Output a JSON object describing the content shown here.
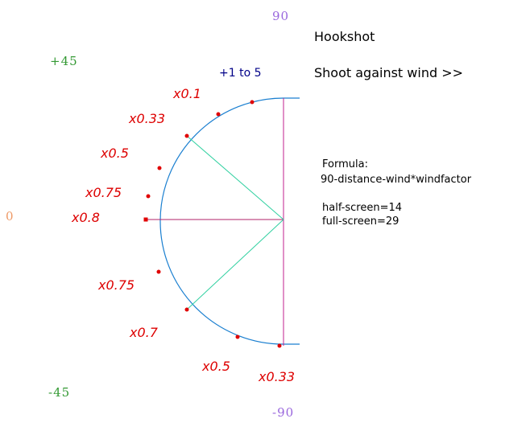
{
  "header": {
    "title": "Hookshot",
    "subtitle": "Shoot against wind >>"
  },
  "angles": {
    "top": "90",
    "upper": "+45",
    "middle": "0",
    "lower": "-45",
    "bottom": "-90"
  },
  "range_label": "+1 to 5",
  "factors": {
    "f1": "x0.1",
    "f2": "x0.33",
    "f3": "x0.5",
    "f4": "x0.75",
    "f5": "x0.8",
    "f6": "x0.75",
    "f7": "x0.7",
    "f8": "x0.5",
    "f9": "x0.33"
  },
  "formula": {
    "label": "Formula:",
    "expression": "90-distance-wind*windfactor",
    "half_screen": "half-screen=14",
    "full_screen": "full-screen=29"
  },
  "colors": {
    "arc": "#1a7fd0",
    "vertical_line": "#c0208f",
    "horizontal_line": "#b0206a",
    "diagonals": "#30d0a0",
    "markers": "#e00000",
    "factor_text": "#dd0000",
    "angle_90": "#9966dd",
    "angle_45": "#339933",
    "angle_0": "#ee9966",
    "range_text": "#000088"
  }
}
